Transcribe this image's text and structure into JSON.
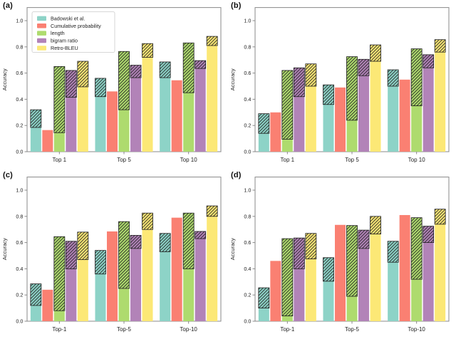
{
  "figure": {
    "background": "#ffffff",
    "style": {
      "spine_color": "#888888",
      "text_color": "#222222",
      "hatch_color": "#1c1c1c",
      "legend_border": "#cccccc",
      "legend_background": "#ffffff"
    }
  },
  "chart_data": [
    {
      "type": "bar",
      "panel_label": "(a)",
      "ylabel": "Accuracy",
      "categories": [
        "Top 1",
        "Top 5",
        "Top 10"
      ],
      "yticks": [
        "0.0",
        "0.2",
        "0.4",
        "0.6",
        "0.8",
        "1.0"
      ],
      "ylim": [
        0,
        1.1
      ],
      "show_legend": true,
      "bar_note": "upper hatched segment spans from solid value to total value",
      "series": [
        {
          "name": "Badowski et al.",
          "color": "#8dd3c7",
          "solid": [
            0.185,
            0.42,
            0.565
          ],
          "total": [
            0.32,
            0.56,
            0.685
          ]
        },
        {
          "name": "Cumulative probability",
          "color": "#fa8072",
          "solid": [
            0.165,
            0.46,
            0.545
          ],
          "total": [
            0.165,
            0.46,
            0.545
          ]
        },
        {
          "name": "length",
          "color": "#aedb6e",
          "solid": [
            0.145,
            0.32,
            0.45
          ],
          "total": [
            0.65,
            0.765,
            0.83
          ]
        },
        {
          "name": "bigram ratio",
          "color": "#b283b8",
          "solid": [
            0.415,
            0.565,
            0.635
          ],
          "total": [
            0.62,
            0.66,
            0.695
          ]
        },
        {
          "name": "Retro-BLEU",
          "color": "#fce876",
          "solid": [
            0.495,
            0.72,
            0.81
          ],
          "total": [
            0.69,
            0.825,
            0.88
          ]
        }
      ]
    },
    {
      "type": "bar",
      "panel_label": "(b)",
      "ylabel": "Accuracy",
      "categories": [
        "Top 1",
        "Top 5",
        "Top 10"
      ],
      "yticks": [
        "0.0",
        "0.2",
        "0.4",
        "0.6",
        "0.8",
        "1.0"
      ],
      "ylim": [
        0,
        1.1
      ],
      "show_legend": false,
      "series": [
        {
          "name": "Badowski et al.",
          "color": "#8dd3c7",
          "solid": [
            0.14,
            0.36,
            0.5
          ],
          "total": [
            0.29,
            0.51,
            0.625
          ]
        },
        {
          "name": "Cumulative probability",
          "color": "#fa8072",
          "solid": [
            0.3,
            0.49,
            0.55
          ],
          "total": [
            0.3,
            0.49,
            0.55
          ]
        },
        {
          "name": "length",
          "color": "#aedb6e",
          "solid": [
            0.095,
            0.24,
            0.35
          ],
          "total": [
            0.62,
            0.725,
            0.785
          ]
        },
        {
          "name": "bigram ratio",
          "color": "#b283b8",
          "solid": [
            0.42,
            0.58,
            0.64
          ],
          "total": [
            0.64,
            0.705,
            0.74
          ]
        },
        {
          "name": "Retro-BLEU",
          "color": "#fce876",
          "solid": [
            0.5,
            0.69,
            0.76
          ],
          "total": [
            0.67,
            0.815,
            0.855
          ]
        }
      ]
    },
    {
      "type": "bar",
      "panel_label": "(c)",
      "ylabel": "Accuracy",
      "categories": [
        "Top-1",
        "Top-5",
        "Top-10"
      ],
      "yticks": [
        "0.0",
        "0.2",
        "0.4",
        "0.6",
        "0.8",
        "1.0"
      ],
      "ylim": [
        0,
        1.1
      ],
      "show_legend": false,
      "series": [
        {
          "name": "Badowski et al.",
          "color": "#8dd3c7",
          "solid": [
            0.12,
            0.36,
            0.53
          ],
          "total": [
            0.285,
            0.54,
            0.67
          ]
        },
        {
          "name": "Cumulative probability",
          "color": "#fa8072",
          "solid": [
            0.24,
            0.685,
            0.79
          ],
          "total": [
            0.24,
            0.685,
            0.79
          ]
        },
        {
          "name": "length",
          "color": "#aedb6e",
          "solid": [
            0.08,
            0.25,
            0.4
          ],
          "total": [
            0.645,
            0.76,
            0.825
          ]
        },
        {
          "name": "bigram ratio",
          "color": "#b283b8",
          "solid": [
            0.4,
            0.555,
            0.63
          ],
          "total": [
            0.61,
            0.655,
            0.685
          ]
        },
        {
          "name": "Retro-BLEU",
          "color": "#fce876",
          "solid": [
            0.47,
            0.7,
            0.8
          ],
          "total": [
            0.68,
            0.825,
            0.88
          ]
        }
      ]
    },
    {
      "type": "bar",
      "panel_label": "(d)",
      "ylabel": "Accuracy",
      "categories": [
        "Top-1",
        "Top-5",
        "Top-10"
      ],
      "yticks": [
        "0.0",
        "0.2",
        "0.4",
        "0.6",
        "0.8",
        "1.0"
      ],
      "ylim": [
        0,
        1.1
      ],
      "show_legend": false,
      "series": [
        {
          "name": "Badowski et al.",
          "color": "#8dd3c7",
          "solid": [
            0.1,
            0.305,
            0.45
          ],
          "total": [
            0.255,
            0.485,
            0.61
          ]
        },
        {
          "name": "Cumulative probability",
          "color": "#fa8072",
          "solid": [
            0.46,
            0.735,
            0.81
          ],
          "total": [
            0.46,
            0.735,
            0.81
          ]
        },
        {
          "name": "length",
          "color": "#aedb6e",
          "solid": [
            0.04,
            0.19,
            0.32
          ],
          "total": [
            0.63,
            0.73,
            0.79
          ]
        },
        {
          "name": "bigram ratio",
          "color": "#b283b8",
          "solid": [
            0.4,
            0.555,
            0.6
          ],
          "total": [
            0.635,
            0.695,
            0.725
          ]
        },
        {
          "name": "Retro-BLEU",
          "color": "#fce876",
          "solid": [
            0.475,
            0.665,
            0.74
          ],
          "total": [
            0.67,
            0.8,
            0.855
          ]
        }
      ]
    }
  ]
}
